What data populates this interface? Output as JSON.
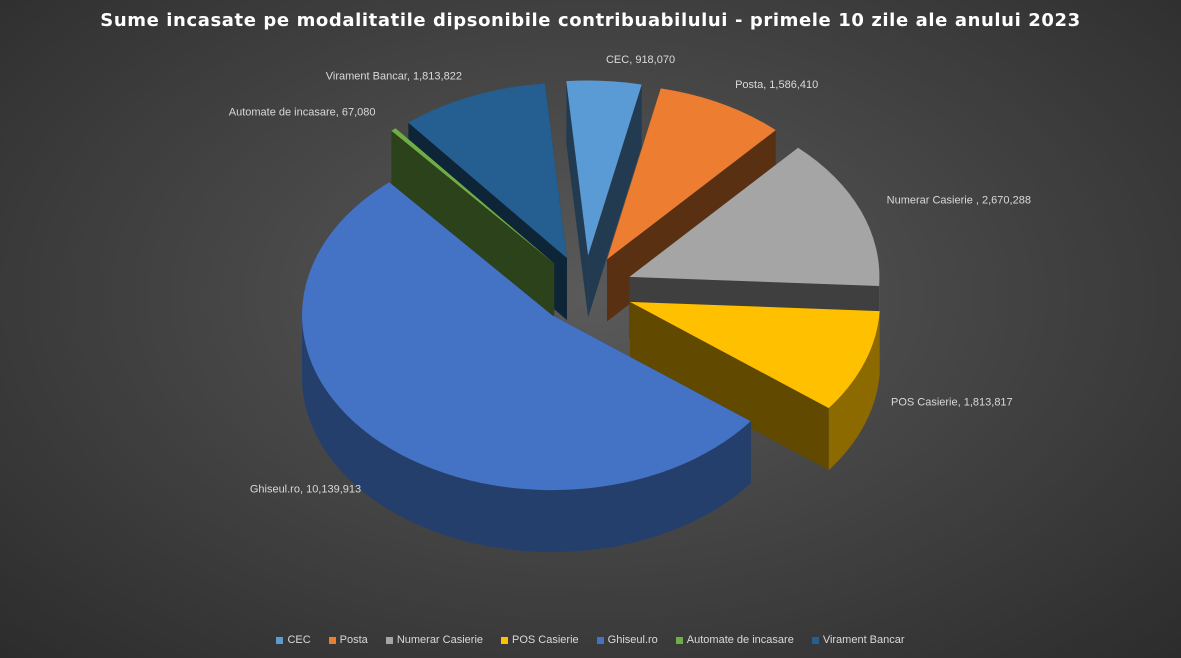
{
  "chart_data": {
    "type": "pie",
    "title": "Sume incasate pe modalitatile dipsonibile contribuabilului - primele 10 zile ale anului 2023",
    "slices": [
      {
        "label": "CEC",
        "value": 918070,
        "value_text": "918,070",
        "color": "#5b9bd5"
      },
      {
        "label": "Posta",
        "value": 1586410,
        "value_text": "1,586,410",
        "color": "#ed7d31"
      },
      {
        "label": "Numerar Casierie ",
        "value": 2670288,
        "value_text": "2,670,288",
        "color": "#a5a5a5"
      },
      {
        "label": "POS Casierie",
        "value": 1813817,
        "value_text": "1,813,817",
        "color": "#ffc000"
      },
      {
        "label": "Ghiseul.ro",
        "value": 10139913,
        "value_text": "10,139,913",
        "color": "#4472c4"
      },
      {
        "label": "Automate de incasare",
        "value": 67080,
        "value_text": "67,080",
        "color": "#70ad47"
      },
      {
        "label": "Virament Bancar",
        "value": 1813822,
        "value_text": "1,813,822",
        "color": "#255e91"
      }
    ],
    "legend": [
      {
        "label": "CEC",
        "color": "#5b9bd5"
      },
      {
        "label": "Posta",
        "color": "#ed7d31"
      },
      {
        "label": "Numerar Casierie",
        "color": "#a5a5a5"
      },
      {
        "label": "POS Casierie",
        "color": "#ffc000"
      },
      {
        "label": "Ghiseul.ro",
        "color": "#4472c4"
      },
      {
        "label": "Automate de incasare",
        "color": "#70ad47"
      },
      {
        "label": "Virament Bancar",
        "color": "#255e91"
      }
    ],
    "legend_position": "bottom",
    "exploded": true,
    "three_d": true
  }
}
